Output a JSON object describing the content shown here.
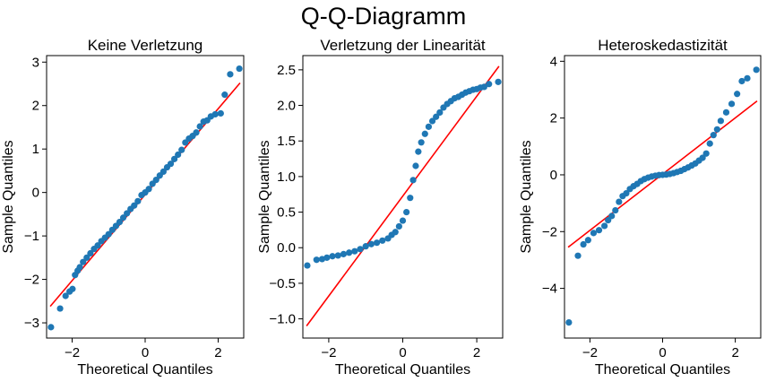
{
  "figure": {
    "title": "Q-Q-Diagramm"
  },
  "colors": {
    "points": "#1f77b4",
    "line": "#ff0000",
    "axes": "#000000"
  },
  "chart_data": [
    {
      "type": "scatter",
      "title": "Keine Verletzung",
      "xlabel": "Theoretical Quantiles",
      "ylabel": "Sample Quantiles",
      "xlim": [
        -2.7,
        2.7
      ],
      "ylim": [
        -3.35,
        3.15
      ],
      "xticks": [
        -2,
        0,
        2
      ],
      "xtick_labels": [
        "−2",
        "0",
        "2"
      ],
      "yticks": [
        -3,
        -2,
        -1,
        0,
        1,
        2,
        3
      ],
      "ytick_labels": [
        "−3",
        "−2",
        "−1",
        "0",
        "1",
        "2",
        "3"
      ],
      "reference_line": {
        "x": [
          -2.6,
          2.6
        ],
        "y": [
          -2.62,
          2.52
        ]
      },
      "points": [
        [
          -2.58,
          -3.1
        ],
        [
          -2.33,
          -2.67
        ],
        [
          -2.18,
          -2.38
        ],
        [
          -2.07,
          -2.28
        ],
        [
          -1.99,
          -2.22
        ],
        [
          -1.92,
          -1.9
        ],
        [
          -1.85,
          -1.8
        ],
        [
          -1.79,
          -1.72
        ],
        [
          -1.7,
          -1.6
        ],
        [
          -1.6,
          -1.5
        ],
        [
          -1.5,
          -1.4
        ],
        [
          -1.4,
          -1.3
        ],
        [
          -1.3,
          -1.22
        ],
        [
          -1.2,
          -1.12
        ],
        [
          -1.1,
          -1.04
        ],
        [
          -1.0,
          -0.96
        ],
        [
          -0.9,
          -0.86
        ],
        [
          -0.8,
          -0.77
        ],
        [
          -0.7,
          -0.68
        ],
        [
          -0.6,
          -0.58
        ],
        [
          -0.5,
          -0.48
        ],
        [
          -0.4,
          -0.38
        ],
        [
          -0.3,
          -0.3
        ],
        [
          -0.2,
          -0.2
        ],
        [
          -0.1,
          -0.06
        ],
        [
          0.0,
          0.0
        ],
        [
          0.1,
          0.08
        ],
        [
          0.2,
          0.2
        ],
        [
          0.3,
          0.29
        ],
        [
          0.4,
          0.39
        ],
        [
          0.5,
          0.48
        ],
        [
          0.6,
          0.58
        ],
        [
          0.7,
          0.66
        ],
        [
          0.8,
          0.77
        ],
        [
          0.9,
          0.87
        ],
        [
          1.0,
          0.98
        ],
        [
          1.1,
          1.15
        ],
        [
          1.2,
          1.24
        ],
        [
          1.3,
          1.3
        ],
        [
          1.4,
          1.38
        ],
        [
          1.5,
          1.52
        ],
        [
          1.6,
          1.63
        ],
        [
          1.7,
          1.66
        ],
        [
          1.8,
          1.75
        ],
        [
          1.92,
          1.8
        ],
        [
          2.07,
          1.82
        ],
        [
          2.18,
          2.25
        ],
        [
          2.33,
          2.72
        ],
        [
          2.58,
          2.85
        ]
      ]
    },
    {
      "type": "scatter",
      "title": "Verletzung der Linearität",
      "xlabel": "Theoretical Quantiles",
      "ylabel": "Sample Quantiles",
      "xlim": [
        -2.7,
        2.7
      ],
      "ylim": [
        -1.27,
        2.7
      ],
      "xticks": [
        -2,
        0,
        2
      ],
      "xtick_labels": [
        "−2",
        "0",
        "2"
      ],
      "yticks": [
        -1.0,
        -0.5,
        0.0,
        0.5,
        1.0,
        1.5,
        2.0,
        2.5
      ],
      "ytick_labels": [
        "−1.0",
        "−0.5",
        "0.0",
        "0.5",
        "1.0",
        "1.5",
        "2.0",
        "2.5"
      ],
      "reference_line": {
        "x": [
          -2.6,
          2.6
        ],
        "y": [
          -1.1,
          2.55
        ]
      },
      "points": [
        [
          -2.58,
          -0.25
        ],
        [
          -2.33,
          -0.17
        ],
        [
          -2.18,
          -0.16
        ],
        [
          -2.05,
          -0.14
        ],
        [
          -1.9,
          -0.12
        ],
        [
          -1.75,
          -0.11
        ],
        [
          -1.6,
          -0.09
        ],
        [
          -1.45,
          -0.07
        ],
        [
          -1.3,
          -0.05
        ],
        [
          -1.15,
          -0.02
        ],
        [
          -1.0,
          0.02
        ],
        [
          -0.85,
          0.05
        ],
        [
          -0.7,
          0.07
        ],
        [
          -0.55,
          0.1
        ],
        [
          -0.4,
          0.13
        ],
        [
          -0.3,
          0.18
        ],
        [
          -0.2,
          0.22
        ],
        [
          -0.1,
          0.3
        ],
        [
          0.0,
          0.38
        ],
        [
          0.1,
          0.5
        ],
        [
          0.2,
          0.7
        ],
        [
          0.28,
          0.95
        ],
        [
          0.35,
          1.15
        ],
        [
          0.42,
          1.35
        ],
        [
          0.5,
          1.48
        ],
        [
          0.6,
          1.6
        ],
        [
          0.7,
          1.7
        ],
        [
          0.8,
          1.78
        ],
        [
          0.9,
          1.84
        ],
        [
          1.0,
          1.9
        ],
        [
          1.1,
          1.97
        ],
        [
          1.2,
          2.02
        ],
        [
          1.3,
          2.06
        ],
        [
          1.4,
          2.1
        ],
        [
          1.5,
          2.12
        ],
        [
          1.6,
          2.15
        ],
        [
          1.7,
          2.18
        ],
        [
          1.8,
          2.2
        ],
        [
          1.9,
          2.22
        ],
        [
          2.0,
          2.23
        ],
        [
          2.1,
          2.25
        ],
        [
          2.2,
          2.26
        ],
        [
          2.33,
          2.3
        ],
        [
          2.58,
          2.33
        ]
      ]
    },
    {
      "type": "scatter",
      "title": "Heteroskedastizität",
      "xlabel": "Theoretical Quantiles",
      "ylabel": "Sample Quantiles",
      "xlim": [
        -2.7,
        2.7
      ],
      "ylim": [
        -5.75,
        4.2
      ],
      "xticks": [
        -2,
        0,
        2
      ],
      "xtick_labels": [
        "−2",
        "0",
        "2"
      ],
      "yticks": [
        -4,
        -2,
        0,
        2,
        4
      ],
      "ytick_labels": [
        "−4",
        "−2",
        "0",
        "2",
        "4"
      ],
      "reference_line": {
        "x": [
          -2.6,
          2.6
        ],
        "y": [
          -2.55,
          2.6
        ]
      },
      "points": [
        [
          -2.58,
          -5.2
        ],
        [
          -2.33,
          -2.85
        ],
        [
          -2.18,
          -2.45
        ],
        [
          -2.05,
          -2.3
        ],
        [
          -1.9,
          -2.05
        ],
        [
          -1.75,
          -1.95
        ],
        [
          -1.6,
          -1.8
        ],
        [
          -1.5,
          -1.6
        ],
        [
          -1.4,
          -1.45
        ],
        [
          -1.3,
          -1.25
        ],
        [
          -1.2,
          -0.95
        ],
        [
          -1.1,
          -0.75
        ],
        [
          -1.0,
          -0.65
        ],
        [
          -0.9,
          -0.5
        ],
        [
          -0.8,
          -0.4
        ],
        [
          -0.7,
          -0.32
        ],
        [
          -0.6,
          -0.22
        ],
        [
          -0.5,
          -0.15
        ],
        [
          -0.4,
          -0.1
        ],
        [
          -0.3,
          -0.06
        ],
        [
          -0.2,
          -0.03
        ],
        [
          -0.1,
          -0.01
        ],
        [
          0.0,
          0.0
        ],
        [
          0.1,
          0.01
        ],
        [
          0.2,
          0.03
        ],
        [
          0.3,
          0.06
        ],
        [
          0.4,
          0.1
        ],
        [
          0.5,
          0.14
        ],
        [
          0.6,
          0.2
        ],
        [
          0.7,
          0.26
        ],
        [
          0.8,
          0.33
        ],
        [
          0.9,
          0.4
        ],
        [
          1.0,
          0.5
        ],
        [
          1.1,
          0.6
        ],
        [
          1.2,
          0.75
        ],
        [
          1.3,
          1.1
        ],
        [
          1.4,
          1.4
        ],
        [
          1.5,
          1.6
        ],
        [
          1.6,
          1.9
        ],
        [
          1.75,
          2.2
        ],
        [
          1.9,
          2.5
        ],
        [
          2.05,
          2.85
        ],
        [
          2.18,
          3.3
        ],
        [
          2.33,
          3.4
        ],
        [
          2.58,
          3.7
        ]
      ]
    }
  ]
}
